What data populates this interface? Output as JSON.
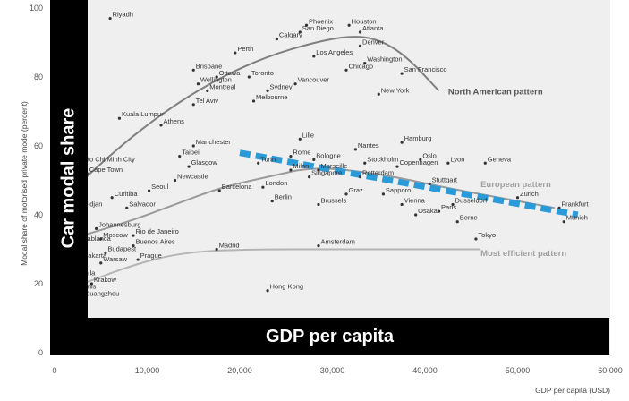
{
  "chart_data": {
    "type": "scatter",
    "xlabel": "GDP per capita (USD)",
    "ylabel": "Modal share of motorised private mode (percent)",
    "xlim": [
      0,
      60000
    ],
    "ylim": [
      0,
      100
    ],
    "x_ticks": [
      "0",
      "10,000",
      "20,000",
      "30,000",
      "40,000",
      "50,000",
      "60,000"
    ],
    "y_ticks": [
      "0",
      "20",
      "40",
      "60",
      "80",
      "100"
    ],
    "grid": false,
    "points": [
      {
        "label": "Riyadh",
        "x": 6000,
        "y": 97
      },
      {
        "label": "Phoenix",
        "x": 27200,
        "y": 95
      },
      {
        "label": "Houston",
        "x": 31800,
        "y": 95
      },
      {
        "label": "San Diego",
        "x": 26500,
        "y": 93
      },
      {
        "label": "Atlanta",
        "x": 33000,
        "y": 93
      },
      {
        "label": "Calgary",
        "x": 24000,
        "y": 91
      },
      {
        "label": "Denver",
        "x": 33000,
        "y": 89
      },
      {
        "label": "Perth",
        "x": 19500,
        "y": 87
      },
      {
        "label": "Los Angeles",
        "x": 28000,
        "y": 86
      },
      {
        "label": "Washington",
        "x": 33500,
        "y": 84
      },
      {
        "label": "Chicago",
        "x": 31500,
        "y": 82
      },
      {
        "label": "Brisbane",
        "x": 15000,
        "y": 82
      },
      {
        "label": "San Francisco",
        "x": 37500,
        "y": 81
      },
      {
        "label": "Ottawa",
        "x": 17500,
        "y": 80
      },
      {
        "label": "Toronto",
        "x": 21000,
        "y": 80
      },
      {
        "label": "Wellington",
        "x": 15500,
        "y": 78
      },
      {
        "label": "Vancouver",
        "x": 26000,
        "y": 78
      },
      {
        "label": "Sydney",
        "x": 23000,
        "y": 76
      },
      {
        "label": "New York",
        "x": 35000,
        "y": 75
      },
      {
        "label": "Montreal",
        "x": 16500,
        "y": 76
      },
      {
        "label": "Tel Aviv",
        "x": 15000,
        "y": 72
      },
      {
        "label": "Melbourne",
        "x": 21500,
        "y": 73
      },
      {
        "label": "Kuala Lumpur",
        "x": 7000,
        "y": 68
      },
      {
        "label": "Athens",
        "x": 11500,
        "y": 66
      },
      {
        "label": "Lille",
        "x": 26500,
        "y": 62
      },
      {
        "label": "Hamburg",
        "x": 37500,
        "y": 61
      },
      {
        "label": "Manchester",
        "x": 15000,
        "y": 60
      },
      {
        "label": "Nantes",
        "x": 32500,
        "y": 59
      },
      {
        "label": "Rome",
        "x": 25500,
        "y": 57
      },
      {
        "label": "Bologne",
        "x": 28000,
        "y": 56
      },
      {
        "label": "Taipei",
        "x": 13500,
        "y": 57
      },
      {
        "label": "Oslo",
        "x": 39500,
        "y": 56
      },
      {
        "label": "Ho Chi Minh City",
        "x": 3000,
        "y": 55
      },
      {
        "label": "Turin",
        "x": 22000,
        "y": 55
      },
      {
        "label": "Stockholm",
        "x": 33500,
        "y": 55
      },
      {
        "label": "Lyon",
        "x": 42500,
        "y": 55
      },
      {
        "label": "Geneva",
        "x": 46500,
        "y": 55
      },
      {
        "label": "Glasgow",
        "x": 14500,
        "y": 54
      },
      {
        "label": "Copenhagen",
        "x": 37000,
        "y": 54
      },
      {
        "label": "Milan",
        "x": 25500,
        "y": 53
      },
      {
        "label": "Marseille",
        "x": 28500,
        "y": 53
      },
      {
        "label": "Cape Town",
        "x": 3500,
        "y": 52
      },
      {
        "label": "Singapore",
        "x": 27500,
        "y": 51
      },
      {
        "label": "Rotterdam",
        "x": 33000,
        "y": 51
      },
      {
        "label": "Newcastle",
        "x": 13000,
        "y": 50
      },
      {
        "label": "Seoul",
        "x": 10200,
        "y": 47
      },
      {
        "label": "Stuttgart",
        "x": 40500,
        "y": 49
      },
      {
        "label": "London",
        "x": 22500,
        "y": 48
      },
      {
        "label": "Barcelona",
        "x": 17800,
        "y": 47
      },
      {
        "label": "Graz",
        "x": 31500,
        "y": 46
      },
      {
        "label": "Sapporo",
        "x": 35500,
        "y": 46
      },
      {
        "label": "Zurich",
        "x": 50000,
        "y": 45
      },
      {
        "label": "Curitiba",
        "x": 6200,
        "y": 45
      },
      {
        "label": "Salvador",
        "x": 7800,
        "y": 42
      },
      {
        "label": "Abidjan",
        "x": 2500,
        "y": 42
      },
      {
        "label": "Berlin",
        "x": 23500,
        "y": 44
      },
      {
        "label": "Brussels",
        "x": 28500,
        "y": 43
      },
      {
        "label": "Vienna",
        "x": 37500,
        "y": 43
      },
      {
        "label": "Dusseldorf",
        "x": 43000,
        "y": 43
      },
      {
        "label": "Frankfurt",
        "x": 54500,
        "y": 42
      },
      {
        "label": "Paris",
        "x": 41500,
        "y": 41
      },
      {
        "label": "Osaka",
        "x": 39000,
        "y": 40
      },
      {
        "label": "Berne",
        "x": 43500,
        "y": 38
      },
      {
        "label": "Munich",
        "x": 55000,
        "y": 38
      },
      {
        "label": "Johannesburg",
        "x": 4500,
        "y": 36
      },
      {
        "label": "Rio de Janeiro",
        "x": 8500,
        "y": 34
      },
      {
        "label": "Moscow",
        "x": 5000,
        "y": 33
      },
      {
        "label": "Casablanca",
        "x": 2000,
        "y": 32
      },
      {
        "label": "Buenos Aires",
        "x": 8500,
        "y": 31
      },
      {
        "label": "Budapest",
        "x": 5500,
        "y": 29
      },
      {
        "label": "Tokyo",
        "x": 45500,
        "y": 33
      },
      {
        "label": "Amsterdam",
        "x": 28500,
        "y": 31
      },
      {
        "label": "Madrid",
        "x": 17500,
        "y": 30
      },
      {
        "label": "Prague",
        "x": 9000,
        "y": 27
      },
      {
        "label": "Jakarta",
        "x": 3000,
        "y": 27
      },
      {
        "label": "Warsaw",
        "x": 5000,
        "y": 26
      },
      {
        "label": "Krakow",
        "x": 4000,
        "y": 20
      },
      {
        "label": "Manila",
        "x": 2000,
        "y": 22
      },
      {
        "label": "Tunis",
        "x": 2500,
        "y": 18
      },
      {
        "label": "Guangzhou",
        "x": 3000,
        "y": 16
      },
      {
        "label": "Hong Kong",
        "x": 23000,
        "y": 18
      }
    ],
    "curves": [
      {
        "name": "North American pattern",
        "color": "#7f7f7f",
        "x": [
          3000,
          8000,
          13000,
          18000,
          23000,
          28000,
          32000,
          35000,
          38000,
          41500
        ],
        "y": [
          50,
          62,
          72,
          80,
          86,
          90,
          92,
          91,
          86,
          76
        ]
      },
      {
        "name": "European pattern",
        "color": "#9a9a9a",
        "x": [
          3000,
          8000,
          13000,
          18000,
          23000,
          28000,
          35000,
          42000,
          48000,
          54000
        ],
        "y": [
          34,
          38,
          43,
          48,
          51,
          54,
          52,
          48,
          45,
          42
        ]
      },
      {
        "name": "Most efficient pattern",
        "color": "#b5b5b5",
        "x": [
          3000,
          8000,
          12000,
          16000,
          22000,
          30000,
          40000,
          46000
        ],
        "y": [
          20,
          25,
          28,
          29.5,
          30,
          30,
          30,
          30
        ]
      }
    ],
    "trend_line": {
      "color": "#2b9ad9",
      "x": [
        20000,
        56500
      ],
      "y": [
        58,
        40
      ]
    },
    "overlays": {
      "x_title": "GDP per capita",
      "y_title": "Car modal share"
    }
  }
}
